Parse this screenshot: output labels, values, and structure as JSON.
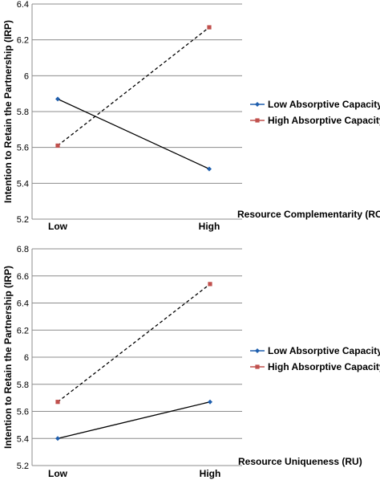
{
  "chart_data": [
    {
      "type": "line",
      "title": "",
      "ylabel": "Intention to Retain the Partnership (IRP)",
      "xlabel": "Resource Complementarity (RC)",
      "categories": [
        "Low",
        "High"
      ],
      "ylim": [
        5.2,
        6.4
      ],
      "yticks": [
        "5.2",
        "5.4",
        "5.6",
        "5.8",
        "6",
        "6.2",
        "6.4"
      ],
      "grid": true,
      "legend_position": "right",
      "series": [
        {
          "name": "Low Absorptive Capacity",
          "values": [
            5.87,
            5.48
          ],
          "color": "#1f5fae",
          "marker": "diamond",
          "line": "solid"
        },
        {
          "name": "High Absorptive Capacity",
          "values": [
            5.61,
            6.27
          ],
          "color": "#c0504d",
          "marker": "square",
          "line": "dashed"
        }
      ]
    },
    {
      "type": "line",
      "title": "",
      "ylabel": "Intention to Retain the Partnership (IRP)",
      "xlabel": "Resource Uniqueness (RU)",
      "categories": [
        "Low",
        "High"
      ],
      "ylim": [
        5.2,
        6.8
      ],
      "yticks": [
        "5.2",
        "5.4",
        "5.6",
        "5.8",
        "6",
        "6.2",
        "6.4",
        "6.6",
        "6.8"
      ],
      "grid": true,
      "legend_position": "right",
      "series": [
        {
          "name": "Low Absorptive Capacity",
          "values": [
            5.4,
            5.67
          ],
          "color": "#1f5fae",
          "marker": "diamond",
          "line": "solid"
        },
        {
          "name": "High Absorptive Capacity",
          "values": [
            5.67,
            6.54
          ],
          "color": "#c0504d",
          "marker": "square",
          "line": "dashed"
        }
      ]
    }
  ]
}
